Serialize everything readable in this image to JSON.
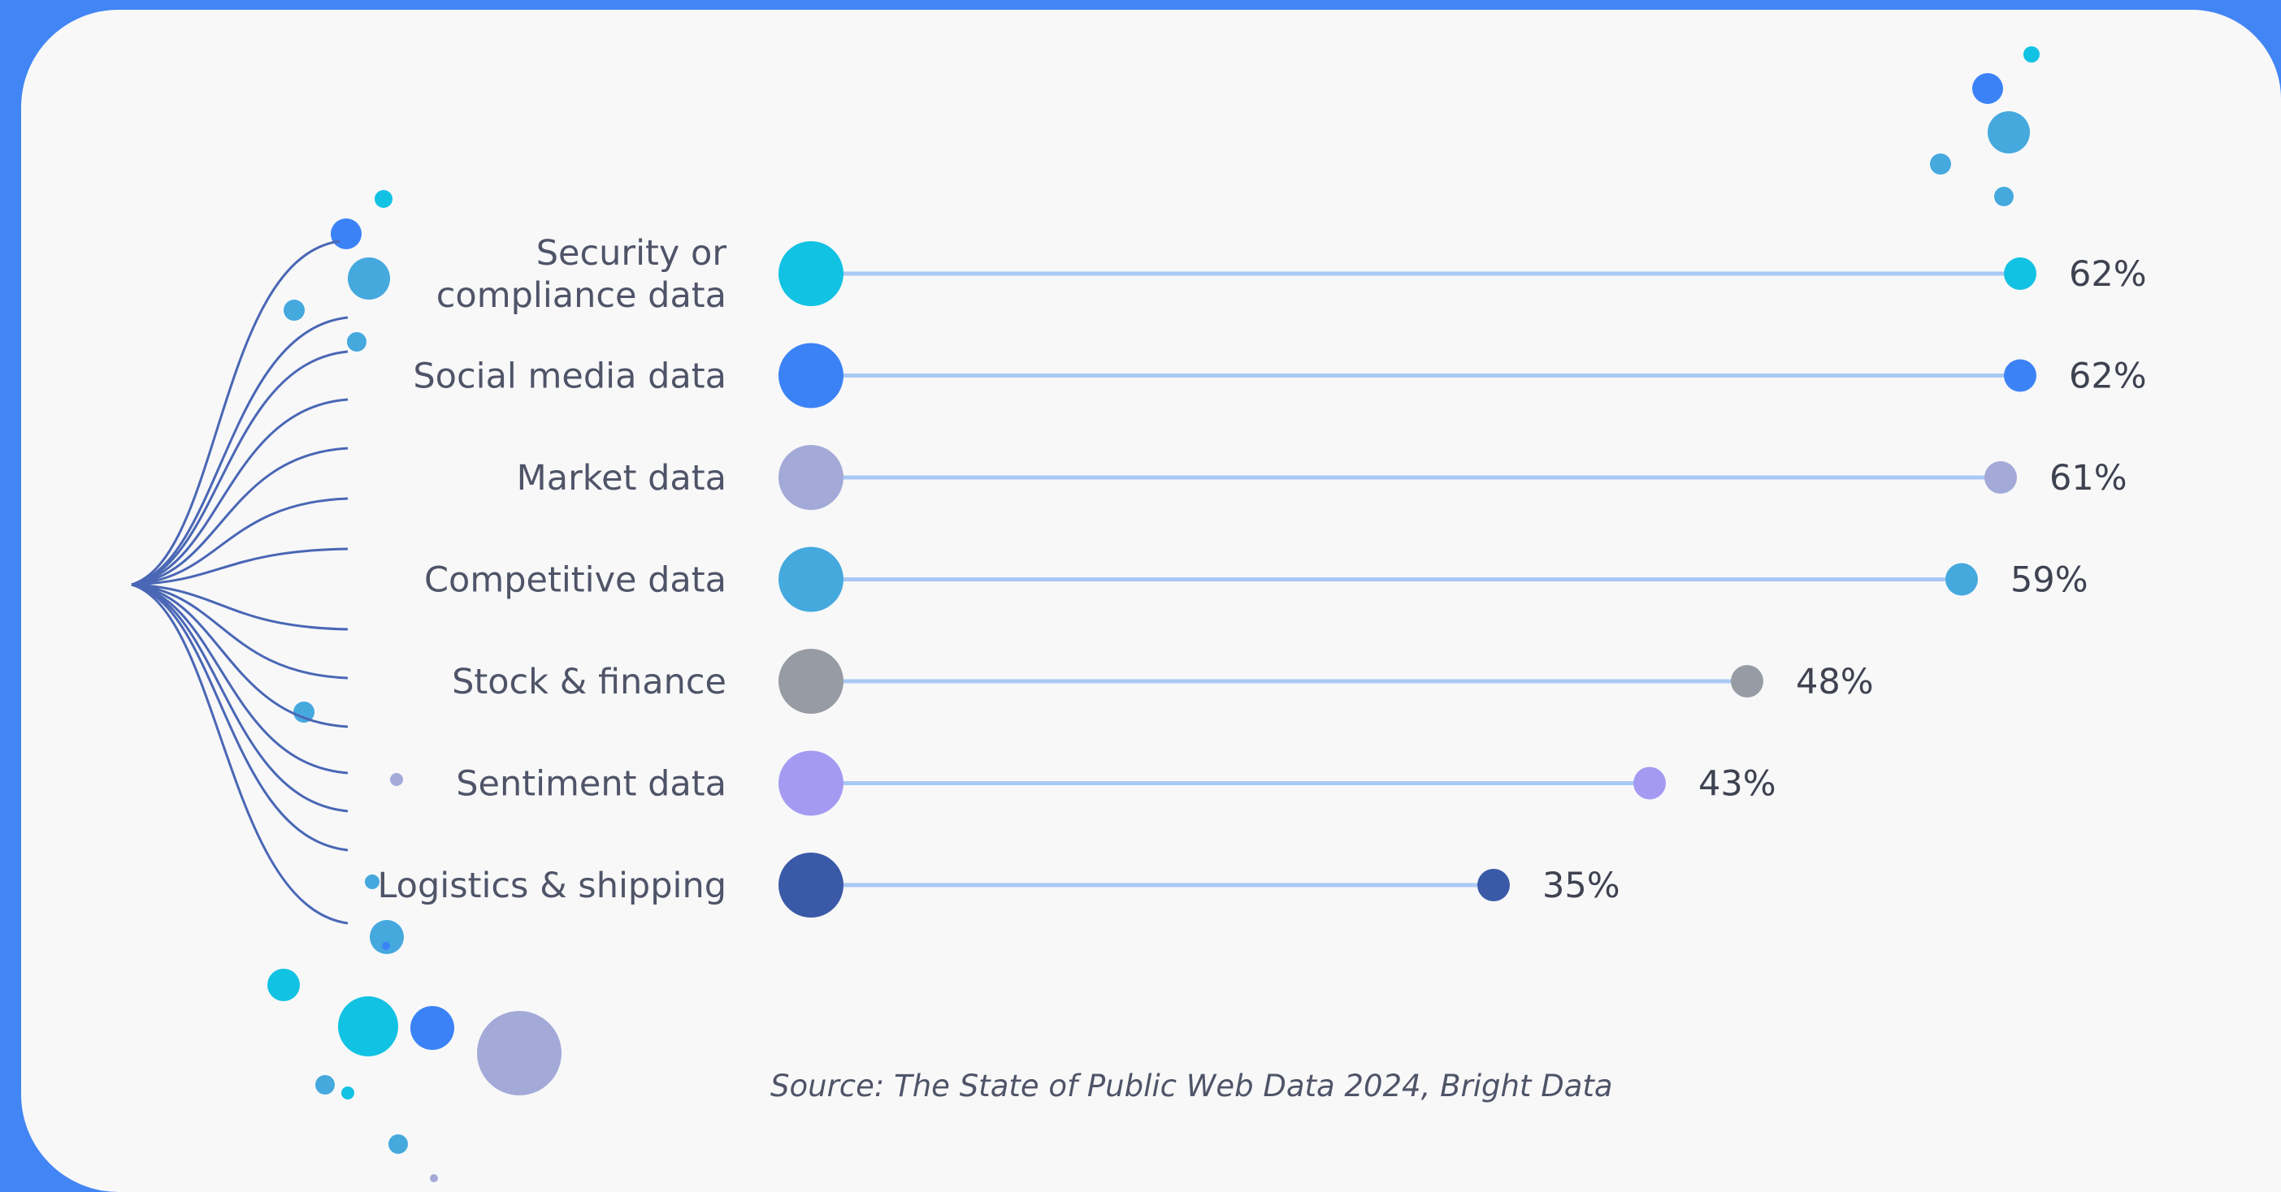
{
  "chart_data": {
    "type": "bar",
    "style": "lollipop",
    "categories": [
      [
        "Security or",
        "compliance data"
      ],
      [
        "Social media data"
      ],
      [
        "Market data"
      ],
      [
        "Competitive data"
      ],
      [
        "Stock & finance"
      ],
      [
        "Sentiment data"
      ],
      [
        "Logistics & shipping"
      ]
    ],
    "values": [
      62,
      62,
      61,
      59,
      48,
      43,
      35
    ],
    "value_labels": [
      "62%",
      "62%",
      "61%",
      "59%",
      "48%",
      "43%",
      "35%"
    ],
    "colors": [
      "#12c2e3",
      "#3b82f6",
      "#a3aad8",
      "#45a9de",
      "#979ca4",
      "#a59af2",
      "#3a5aa8"
    ],
    "line_color": "#a9c9f5",
    "grid": false,
    "legend": "none"
  },
  "source": "Source: The State of Public Web Data 2024, Bright Data"
}
